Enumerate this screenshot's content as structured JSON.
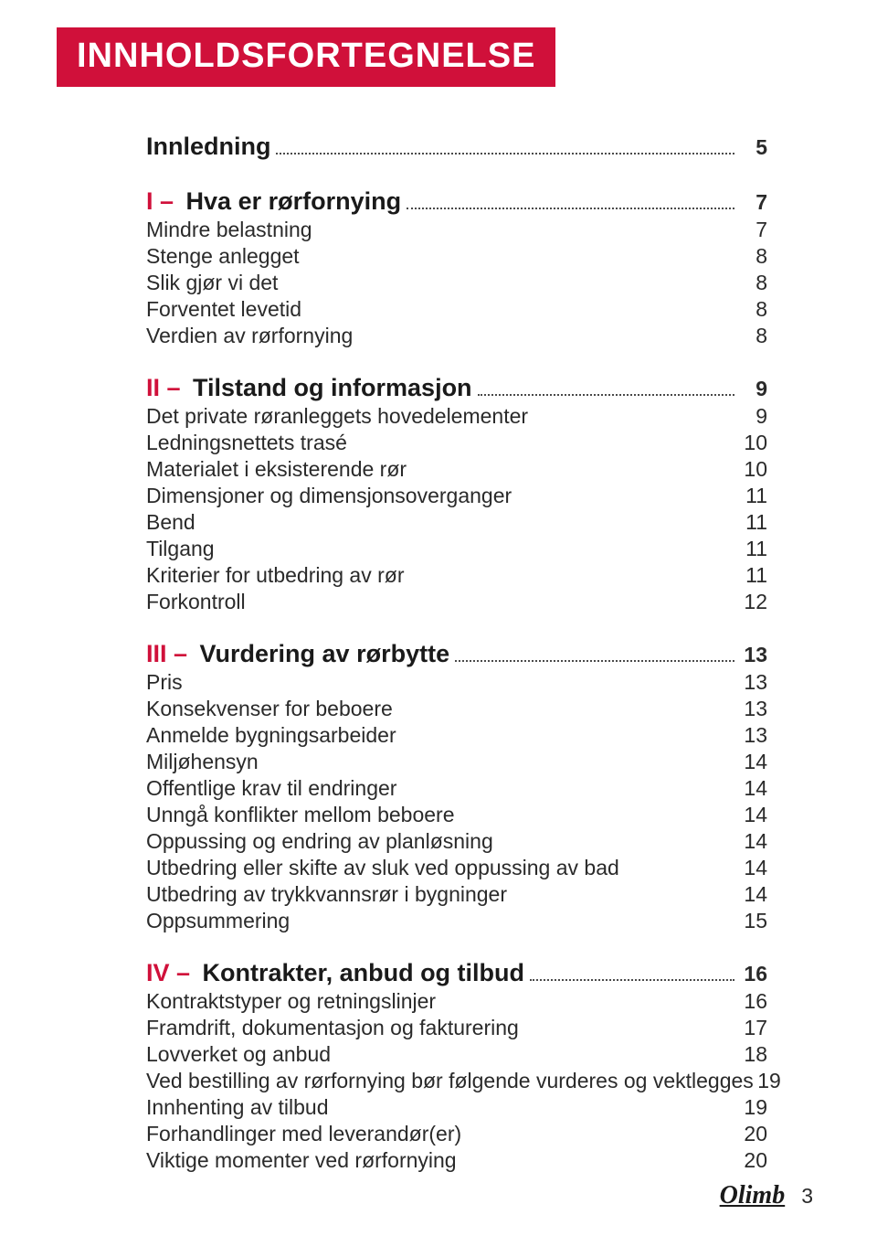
{
  "title": "INNHOLDSFORTEGNELSE",
  "intro": {
    "label": "Innledning",
    "page": "5"
  },
  "sections": [
    {
      "roman": "I",
      "title": "Hva er rørfornying",
      "page": "7",
      "items": [
        {
          "label": "Mindre belastning",
          "page": "7"
        },
        {
          "label": "Stenge anlegget",
          "page": "8"
        },
        {
          "label": "Slik gjør vi det",
          "page": "8"
        },
        {
          "label": "Forventet levetid",
          "page": "8"
        },
        {
          "label": "Verdien av rørfornying",
          "page": "8"
        }
      ]
    },
    {
      "roman": "II",
      "title": "Tilstand og informasjon",
      "page": "9",
      "items": [
        {
          "label": "Det private røranleggets hovedelementer",
          "page": "9"
        },
        {
          "label": "Ledningsnettets trasé",
          "page": "10"
        },
        {
          "label": "Materialet i eksisterende rør",
          "page": "10"
        },
        {
          "label": "Dimensjoner og dimensjonsoverganger",
          "page": "11"
        },
        {
          "label": "Bend",
          "page": "11"
        },
        {
          "label": "Tilgang",
          "page": "11"
        },
        {
          "label": "Kriterier for utbedring av rør",
          "page": "11"
        },
        {
          "label": "Forkontroll",
          "page": "12"
        }
      ]
    },
    {
      "roman": "III",
      "title": "Vurdering av rørbytte",
      "page": "13",
      "items": [
        {
          "label": "Pris",
          "page": "13"
        },
        {
          "label": "Konsekvenser for beboere",
          "page": "13"
        },
        {
          "label": "Anmelde bygningsarbeider",
          "page": "13"
        },
        {
          "label": "Miljøhensyn",
          "page": "14"
        },
        {
          "label": "Offentlige krav til endringer",
          "page": "14"
        },
        {
          "label": "Unngå konflikter mellom beboere",
          "page": "14"
        },
        {
          "label": "Oppussing og endring av planløsning",
          "page": "14"
        },
        {
          "label": "Utbedring eller skifte av sluk ved oppussing av bad",
          "page": "14"
        },
        {
          "label": "Utbedring av trykkvannsrør i bygninger",
          "page": "14"
        },
        {
          "label": "Oppsummering",
          "page": "15"
        }
      ]
    },
    {
      "roman": "IV",
      "title": "Kontrakter, anbud og tilbud",
      "page": "16",
      "items": [
        {
          "label": "Kontraktstyper og retningslinjer",
          "page": "16"
        },
        {
          "label": "Framdrift, dokumentasjon og fakturering",
          "page": "17"
        },
        {
          "label": "Lovverket og anbud",
          "page": "18"
        },
        {
          "label": "Ved bestilling av rørfornying bør følgende vurderes og vektlegges",
          "page": "19"
        },
        {
          "label": "Innhenting av tilbud",
          "page": "19"
        },
        {
          "label": "Forhandlinger med leverandør(er)",
          "page": "20"
        },
        {
          "label": "Viktige momenter ved rørfornying",
          "page": "20"
        }
      ]
    }
  ],
  "footer": {
    "logo": "Olimb",
    "page": "3"
  },
  "colors": {
    "brand": "#d0103a",
    "text": "#2a2a2a",
    "bg": "#ffffff"
  }
}
